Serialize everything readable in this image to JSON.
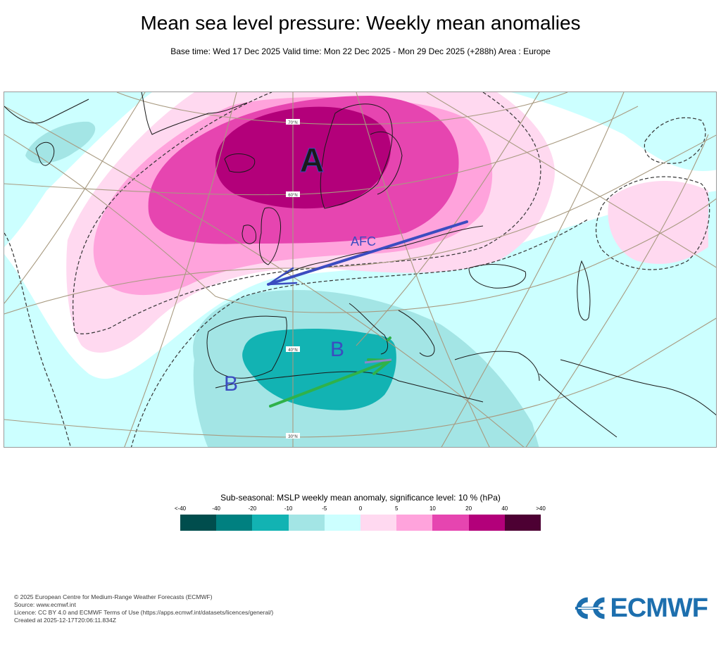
{
  "header": {
    "title": "Mean sea level pressure: Weekly mean anomalies",
    "subtitle": "Base time: Wed 17 Dec 2025 Valid time: Mon 22 Dec 2025 - Mon 29 Dec 2025 (+288h) Area : Europe"
  },
  "map": {
    "annotations": {
      "high_label": "A",
      "afc_label": "AFC",
      "low_label_1": "B",
      "low_label_2": "B"
    },
    "grid_labels": [
      "70°N",
      "60°N",
      "40°N",
      "30°N"
    ],
    "colors": {
      "annotation_blue": "#3b4cc0",
      "arrow_green": "#2fb24a",
      "graticule": "#a89a80",
      "coastline": "#1a1a1a"
    }
  },
  "legend": {
    "title": "Sub-seasonal: MSLP weekly mean anomaly, significance level: 10 % (hPa)",
    "ticks": [
      "<-40",
      "-40",
      "-20",
      "-10",
      "-5",
      "0",
      "5",
      "10",
      "20",
      "40",
      ">40"
    ],
    "colors": [
      "#004d4d",
      "#008080",
      "#12b3b3",
      "#a3e5e5",
      "#ccffff",
      "#ffd9f0",
      "#ffa3dc",
      "#e645b0",
      "#b3007a",
      "#4d0033"
    ]
  },
  "footer": {
    "lines": [
      "© 2025 European Centre for Medium-Range Weather Forecasts (ECMWF)",
      "Source: www.ecmwf.int",
      "Licence: CC BY 4.0 and ECMWF Terms of Use (https://apps.ecmwf.int/datasets/licences/general/)",
      "Created at 2025-12-17T20:06:11.834Z"
    ]
  },
  "logo": {
    "text": "ECMWF",
    "color": "#1d6fae"
  }
}
